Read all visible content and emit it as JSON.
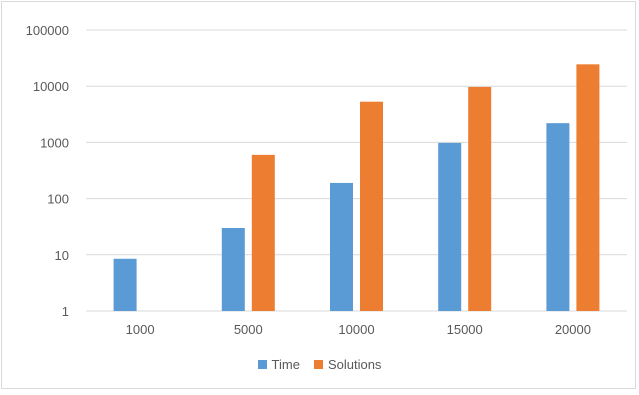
{
  "chart_data": {
    "type": "bar",
    "title": "",
    "xlabel": "",
    "ylabel": "",
    "yscale": "log",
    "ylim": [
      1,
      100000
    ],
    "yticks": [
      "1",
      "10",
      "100",
      "1000",
      "10000",
      "100000"
    ],
    "categories": [
      "1000",
      "5000",
      "10000",
      "15000",
      "20000"
    ],
    "series": [
      {
        "name": "Time",
        "color": "#5b9bd5",
        "values": [
          8.5,
          30,
          190,
          980,
          2200
        ]
      },
      {
        "name": "Solutions",
        "color": "#ed7d31",
        "values": [
          null,
          600,
          5300,
          9700,
          24500
        ]
      }
    ],
    "grid": true,
    "legend_position": "bottom"
  }
}
